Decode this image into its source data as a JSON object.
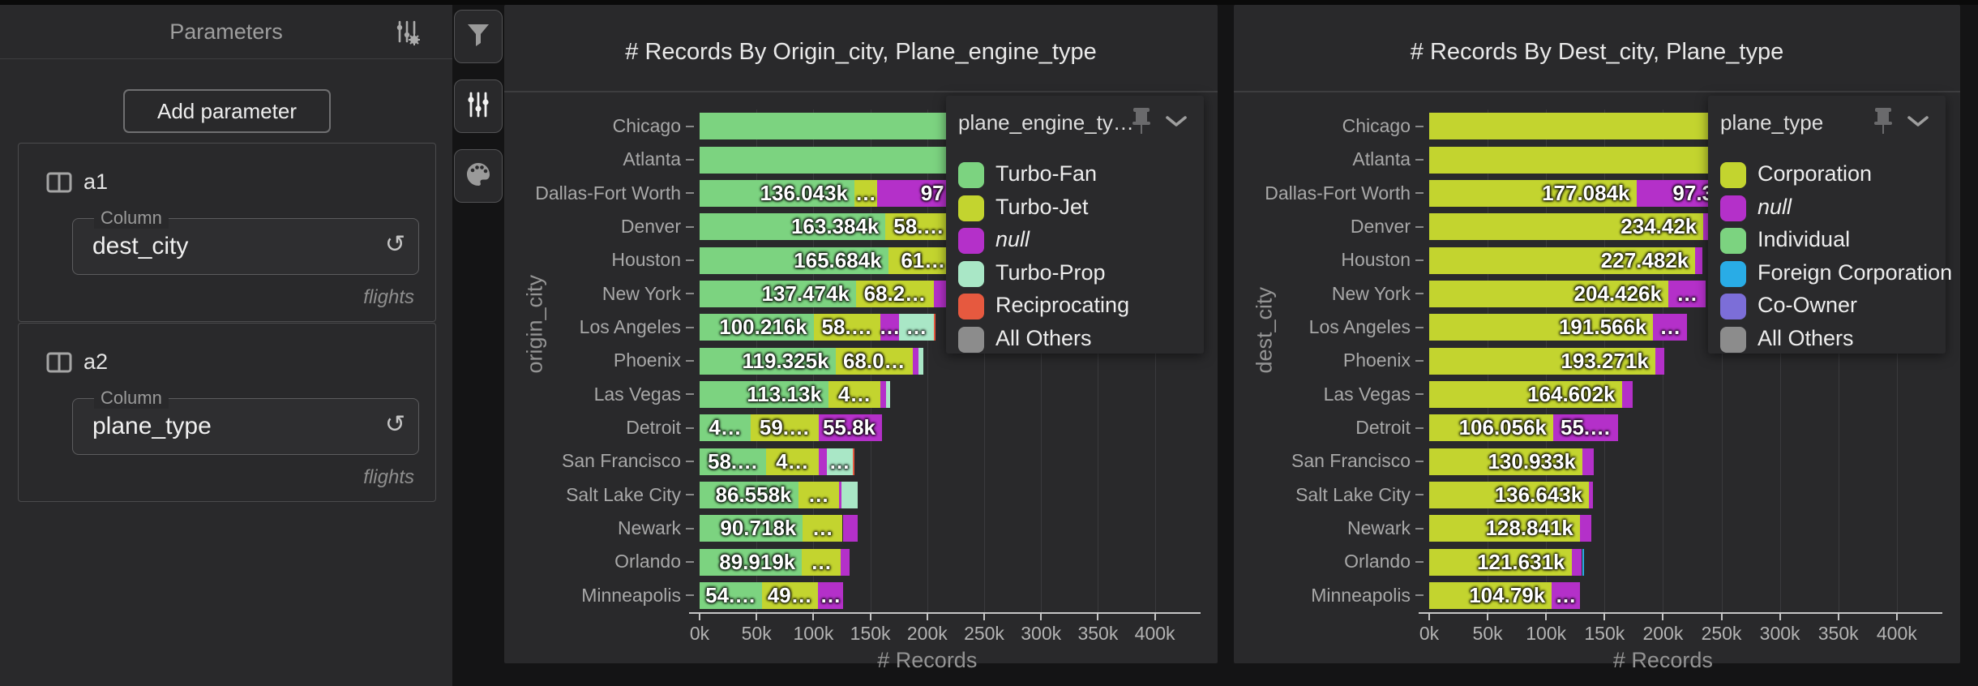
{
  "sidebar": {
    "title": "Parameters",
    "add_button": "Add parameter",
    "params": [
      {
        "name": "a1",
        "field_label": "Column",
        "value": "dest_city",
        "source": "flights",
        "reset_icon": "↺"
      },
      {
        "name": "a2",
        "field_label": "Column",
        "value": "plane_type",
        "source": "flights",
        "reset_icon": "↺"
      }
    ]
  },
  "toolbar": {
    "buttons": [
      {
        "icon": "filter-icon"
      },
      {
        "icon": "sliders-icon",
        "active": true
      },
      {
        "icon": "palette-icon"
      }
    ]
  },
  "colors": {
    "Turbo-Fan": "#7cd380",
    "Turbo-Jet": "#c3d42f",
    "null": "#b430c9",
    "Turbo-Prop": "#a9e7c6",
    "Reciprocating": "#e6593f",
    "All Others": "#8c8c8c",
    "Corporation": "#c3d42f",
    "Individual": "#7cd380",
    "Foreign Corporation": "#29ace6",
    "Co-Owner": "#7c6ed8"
  },
  "chart_data": [
    {
      "type": "bar",
      "orientation": "horizontal",
      "stacked": true,
      "title": "# Records By Origin_city, Plane_engine_type",
      "xlabel": "# Records",
      "ylabel": "origin_city",
      "x_ticks": [
        "0k",
        "50k",
        "100k",
        "150k",
        "200k",
        "250k",
        "300k",
        "350k",
        "400k"
      ],
      "xlim_k": [
        0,
        440
      ],
      "grid": true,
      "legend": {
        "title": "plane_engine_ty…",
        "position": "top-right",
        "entries": [
          {
            "label": "Turbo-Fan",
            "italic": false
          },
          {
            "label": "Turbo-Jet",
            "italic": false
          },
          {
            "label": "null",
            "italic": true
          },
          {
            "label": "Turbo-Prop",
            "italic": false
          },
          {
            "label": "Reciprocating",
            "italic": false
          },
          {
            "label": "All Others",
            "italic": false
          }
        ]
      },
      "categories": [
        "Chicago",
        "Atlanta",
        "Dallas-Fort Worth",
        "Denver",
        "Houston",
        "New York",
        "Los Angeles",
        "Phoenix",
        "Las Vegas",
        "Detroit",
        "San Francisco",
        "Salt Lake City",
        "Newark",
        "Orlando",
        "Minneapolis"
      ],
      "rows": [
        {
          "city": "Chicago",
          "segments": [
            {
              "series": "Turbo-Fan",
              "value_k": 270,
              "label": "",
              "label_pos": "end"
            },
            {
              "series": "Turbo-Jet",
              "value_k": 110,
              "label": "",
              "label_pos": "end"
            },
            {
              "series": "null",
              "value_k": 55,
              "label": "",
              "label_pos": "end"
            }
          ]
        },
        {
          "city": "Atlanta",
          "segments": [
            {
              "series": "Turbo-Fan",
              "value_k": 262,
              "label": "",
              "label_pos": "end"
            },
            {
              "series": "Turbo-Jet",
              "value_k": 105,
              "label": "",
              "label_pos": "end"
            },
            {
              "series": "null",
              "value_k": 48,
              "label": "",
              "label_pos": "end"
            }
          ]
        },
        {
          "city": "Dallas-Fort Worth",
          "segments": [
            {
              "series": "Turbo-Fan",
              "value_k": 136.043,
              "label": "136.043k",
              "label_pos": "end"
            },
            {
              "series": "Turbo-Jet",
              "value_k": 20,
              "label": "…",
              "label_pos": "center"
            },
            {
              "series": "null",
              "value_k": 97,
              "label": "97",
              "label_pos": "center"
            }
          ]
        },
        {
          "city": "Denver",
          "segments": [
            {
              "series": "Turbo-Fan",
              "value_k": 163.384,
              "label": "163.384k",
              "label_pos": "end"
            },
            {
              "series": "Turbo-Jet",
              "value_k": 58.4,
              "label": "58.…",
              "label_pos": "center"
            },
            {
              "series": "null",
              "value_k": 6,
              "label": "",
              "label_pos": "end"
            }
          ]
        },
        {
          "city": "Houston",
          "segments": [
            {
              "series": "Turbo-Fan",
              "value_k": 165.684,
              "label": "165.684k",
              "label_pos": "end"
            },
            {
              "series": "Turbo-Jet",
              "value_k": 61.5,
              "label": "61…",
              "label_pos": "center"
            },
            {
              "series": "null",
              "value_k": 8,
              "label": "",
              "label_pos": "end"
            }
          ]
        },
        {
          "city": "New York",
          "segments": [
            {
              "series": "Turbo-Fan",
              "value_k": 137.474,
              "label": "137.474k",
              "label_pos": "end"
            },
            {
              "series": "Turbo-Jet",
              "value_k": 68.2,
              "label": "68.2…",
              "label_pos": "center"
            },
            {
              "series": "null",
              "value_k": 44,
              "label": "",
              "label_pos": "end"
            }
          ]
        },
        {
          "city": "Los Angeles",
          "segments": [
            {
              "series": "Turbo-Fan",
              "value_k": 100.216,
              "label": "100.216k",
              "label_pos": "end"
            },
            {
              "series": "Turbo-Jet",
              "value_k": 58.3,
              "label": "58.…",
              "label_pos": "center"
            },
            {
              "series": "null",
              "value_k": 17,
              "label": "…",
              "label_pos": "center"
            },
            {
              "series": "Turbo-Prop",
              "value_k": 30,
              "label": "…",
              "label_pos": "center"
            },
            {
              "series": "Reciprocating",
              "value_k": 1.5,
              "label": "",
              "label_pos": "end"
            }
          ]
        },
        {
          "city": "Phoenix",
          "segments": [
            {
              "series": "Turbo-Fan",
              "value_k": 119.325,
              "label": "119.325k",
              "label_pos": "end"
            },
            {
              "series": "Turbo-Jet",
              "value_k": 68.0,
              "label": "68.0…",
              "label_pos": "center"
            },
            {
              "series": "null",
              "value_k": 5,
              "label": "",
              "label_pos": "end"
            },
            {
              "series": "Turbo-Prop",
              "value_k": 4,
              "label": "",
              "label_pos": "end"
            }
          ]
        },
        {
          "city": "Las Vegas",
          "segments": [
            {
              "series": "Turbo-Fan",
              "value_k": 113.13,
              "label": "113.13k",
              "label_pos": "end"
            },
            {
              "series": "Turbo-Jet",
              "value_k": 46,
              "label": "4…",
              "label_pos": "center"
            },
            {
              "series": "null",
              "value_k": 5,
              "label": "",
              "label_pos": "end"
            },
            {
              "series": "Turbo-Prop",
              "value_k": 3,
              "label": "",
              "label_pos": "end"
            }
          ]
        },
        {
          "city": "Detroit",
          "segments": [
            {
              "series": "Turbo-Fan",
              "value_k": 45,
              "label": "4…",
              "label_pos": "center"
            },
            {
              "series": "Turbo-Jet",
              "value_k": 59.5,
              "label": "59.…",
              "label_pos": "center"
            },
            {
              "series": "null",
              "value_k": 55.8,
              "label": "55.8k",
              "label_pos": "end"
            }
          ]
        },
        {
          "city": "San Francisco",
          "segments": [
            {
              "series": "Turbo-Fan",
              "value_k": 58.5,
              "label": "58.…",
              "label_pos": "center"
            },
            {
              "series": "Turbo-Jet",
              "value_k": 46,
              "label": "4…",
              "label_pos": "center"
            },
            {
              "series": "null",
              "value_k": 7,
              "label": "",
              "label_pos": "end"
            },
            {
              "series": "Turbo-Prop",
              "value_k": 23,
              "label": "…",
              "label_pos": "center"
            },
            {
              "series": "Reciprocating",
              "value_k": 1.5,
              "label": "",
              "label_pos": "end"
            }
          ]
        },
        {
          "city": "Salt Lake City",
          "segments": [
            {
              "series": "Turbo-Fan",
              "value_k": 86.558,
              "label": "86.558k",
              "label_pos": "end"
            },
            {
              "series": "Turbo-Jet",
              "value_k": 36,
              "label": "…",
              "label_pos": "center"
            },
            {
              "series": "null",
              "value_k": 2,
              "label": "",
              "label_pos": "end"
            },
            {
              "series": "Turbo-Prop",
              "value_k": 14,
              "label": "",
              "label_pos": "end"
            }
          ]
        },
        {
          "city": "Newark",
          "segments": [
            {
              "series": "Turbo-Fan",
              "value_k": 90.718,
              "label": "90.718k",
              "label_pos": "end"
            },
            {
              "series": "Turbo-Jet",
              "value_k": 35,
              "label": "…",
              "label_pos": "center"
            },
            {
              "series": "null",
              "value_k": 13,
              "label": "",
              "label_pos": "end"
            }
          ]
        },
        {
          "city": "Orlando",
          "segments": [
            {
              "series": "Turbo-Fan",
              "value_k": 89.919,
              "label": "89.919k",
              "label_pos": "end"
            },
            {
              "series": "Turbo-Jet",
              "value_k": 34,
              "label": "…",
              "label_pos": "center"
            },
            {
              "series": "null",
              "value_k": 8,
              "label": "",
              "label_pos": "end"
            }
          ]
        },
        {
          "city": "Minneapolis",
          "segments": [
            {
              "series": "Turbo-Fan",
              "value_k": 54.5,
              "label": "54.…",
              "label_pos": "center"
            },
            {
              "series": "Turbo-Jet",
              "value_k": 49.5,
              "label": "49…",
              "label_pos": "center"
            },
            {
              "series": "null",
              "value_k": 22,
              "label": "…",
              "label_pos": "center"
            }
          ]
        }
      ]
    },
    {
      "type": "bar",
      "orientation": "horizontal",
      "stacked": true,
      "title": "# Records By Dest_city, Plane_type",
      "xlabel": "# Records",
      "ylabel": "dest_city",
      "x_ticks": [
        "0k",
        "50k",
        "100k",
        "150k",
        "200k",
        "250k",
        "300k",
        "350k",
        "400k"
      ],
      "xlim_k": [
        0,
        440
      ],
      "grid": true,
      "legend": {
        "title": "plane_type",
        "position": "top-right",
        "entries": [
          {
            "label": "Corporation",
            "italic": false
          },
          {
            "label": "null",
            "italic": true
          },
          {
            "label": "Individual",
            "italic": false
          },
          {
            "label": "Foreign Corporation",
            "italic": false
          },
          {
            "label": "Co-Owner",
            "italic": false
          },
          {
            "label": "All Others",
            "italic": false
          }
        ]
      },
      "categories": [
        "Chicago",
        "Atlanta",
        "Dallas-Fort Worth",
        "Denver",
        "Houston",
        "New York",
        "Los Angeles",
        "Phoenix",
        "Las Vegas",
        "Detroit",
        "San Francisco",
        "Salt Lake City",
        "Newark",
        "Orlando",
        "Minneapolis"
      ],
      "rows": [
        {
          "city": "Chicago",
          "segments": [
            {
              "series": "Corporation",
              "value_k": 350,
              "label": "",
              "label_pos": "end"
            },
            {
              "series": "null",
              "value_k": 80,
              "label": "",
              "label_pos": "end"
            },
            {
              "series": "Individual",
              "value_k": 8,
              "label": "",
              "label_pos": "end"
            }
          ]
        },
        {
          "city": "Atlanta",
          "segments": [
            {
              "series": "Corporation",
              "value_k": 338,
              "label": "",
              "label_pos": "end"
            },
            {
              "series": "null",
              "value_k": 70,
              "label": "",
              "label_pos": "end"
            }
          ]
        },
        {
          "city": "Dallas-Fort Worth",
          "segments": [
            {
              "series": "Corporation",
              "value_k": 177.084,
              "label": "177.084k",
              "label_pos": "end"
            },
            {
              "series": "null",
              "value_k": 97.3,
              "label": "97.3",
              "label_pos": "center"
            }
          ]
        },
        {
          "city": "Denver",
          "segments": [
            {
              "series": "Corporation",
              "value_k": 234.42,
              "label": "234.42k",
              "label_pos": "end"
            },
            {
              "series": "null",
              "value_k": 5,
              "label": "",
              "label_pos": "end"
            }
          ]
        },
        {
          "city": "Houston",
          "segments": [
            {
              "series": "Corporation",
              "value_k": 227.482,
              "label": "227.482k",
              "label_pos": "end"
            },
            {
              "series": "null",
              "value_k": 6,
              "label": "",
              "label_pos": "end"
            }
          ]
        },
        {
          "city": "New York",
          "segments": [
            {
              "series": "Corporation",
              "value_k": 204.426,
              "label": "204.426k",
              "label_pos": "end"
            },
            {
              "series": "null",
              "value_k": 32,
              "label": "…",
              "label_pos": "center"
            }
          ]
        },
        {
          "city": "Los Angeles",
          "segments": [
            {
              "series": "Corporation",
              "value_k": 191.566,
              "label": "191.566k",
              "label_pos": "end"
            },
            {
              "series": "null",
              "value_k": 29,
              "label": "…",
              "label_pos": "center"
            }
          ]
        },
        {
          "city": "Phoenix",
          "segments": [
            {
              "series": "Corporation",
              "value_k": 193.271,
              "label": "193.271k",
              "label_pos": "end"
            },
            {
              "series": "null",
              "value_k": 8,
              "label": "",
              "label_pos": "end"
            }
          ]
        },
        {
          "city": "Las Vegas",
          "segments": [
            {
              "series": "Corporation",
              "value_k": 164.602,
              "label": "164.602k",
              "label_pos": "end"
            },
            {
              "series": "null",
              "value_k": 9,
              "label": "",
              "label_pos": "end"
            }
          ]
        },
        {
          "city": "Detroit",
          "segments": [
            {
              "series": "Corporation",
              "value_k": 106.056,
              "label": "106.056k",
              "label_pos": "end"
            },
            {
              "series": "null",
              "value_k": 55.5,
              "label": "55.…",
              "label_pos": "center"
            }
          ]
        },
        {
          "city": "San Francisco",
          "segments": [
            {
              "series": "Corporation",
              "value_k": 130.933,
              "label": "130.933k",
              "label_pos": "end"
            },
            {
              "series": "null",
              "value_k": 10,
              "label": "",
              "label_pos": "end"
            }
          ]
        },
        {
          "city": "Salt Lake City",
          "segments": [
            {
              "series": "Corporation",
              "value_k": 136.643,
              "label": "136.643k",
              "label_pos": "end"
            },
            {
              "series": "null",
              "value_k": 3,
              "label": "",
              "label_pos": "end"
            }
          ]
        },
        {
          "city": "Newark",
          "segments": [
            {
              "series": "Corporation",
              "value_k": 128.841,
              "label": "128.841k",
              "label_pos": "end"
            },
            {
              "series": "null",
              "value_k": 10,
              "label": "",
              "label_pos": "end"
            }
          ]
        },
        {
          "city": "Orlando",
          "segments": [
            {
              "series": "Corporation",
              "value_k": 121.631,
              "label": "121.631k",
              "label_pos": "end"
            },
            {
              "series": "null",
              "value_k": 9,
              "label": "",
              "label_pos": "end"
            },
            {
              "series": "Foreign Corporation",
              "value_k": 1.5,
              "label": "",
              "label_pos": "end"
            }
          ]
        },
        {
          "city": "Minneapolis",
          "segments": [
            {
              "series": "Corporation",
              "value_k": 104.79,
              "label": "104.79k",
              "label_pos": "end"
            },
            {
              "series": "null",
              "value_k": 24,
              "label": "…",
              "label_pos": "center"
            }
          ]
        }
      ]
    }
  ]
}
